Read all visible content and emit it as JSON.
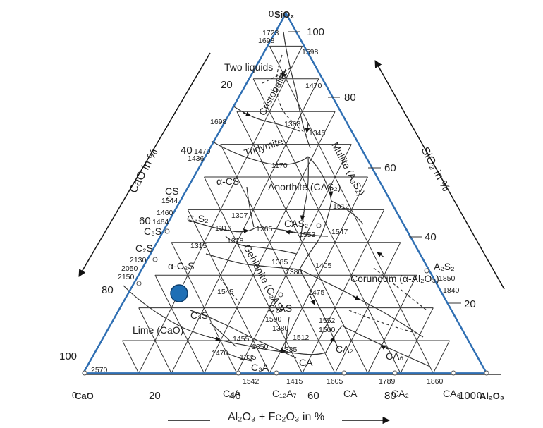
{
  "vertices": {
    "top": "SiO₂",
    "left": "CaO",
    "right": "Al₂O₃",
    "top_zero": "0",
    "left_zero": "0",
    "right_zero": "0"
  },
  "axis_titles": {
    "left": "CaO in %",
    "right": "SiO₂ in %",
    "bottom": "Al₂O₃ + Fe₂O₃ in %"
  },
  "ticks": {
    "right_side": [
      "100",
      "80",
      "60",
      "40",
      "20"
    ],
    "left_side": [
      "20",
      "40",
      "60",
      "80",
      "100"
    ],
    "bottom": [
      "20",
      "40",
      "60",
      "80",
      "100"
    ]
  },
  "regions": [
    "Two liquids",
    "Cristobalite",
    "Tridymite",
    "Mullite (A₃S₂)",
    "α-CS",
    "Anorthite (CAS₂)",
    "CAS₂",
    "Gehlenite (C₂AS)",
    "α-C₂S",
    "C₃S",
    "Lime (CaO)",
    "Corundum (α-Al₂O₃)"
  ],
  "compounds": {
    "CS": "CS",
    "C3S2": "C₃S₂",
    "C3S": "C₃S",
    "C2S": "C₂S",
    "C2AS": "C₂AS",
    "CA2": "CA₂",
    "CA6": "CA₆",
    "CA": "CA",
    "C3A": "C₃A",
    "A2S2": "A₂S₂",
    "bottom_C3A": "C₃A",
    "bottom_C12A7": "C₁₂A₇",
    "bottom_CA": "CA",
    "bottom_CA2": "CA₂",
    "bottom_CA6": "CA₆"
  },
  "temperatures": [
    "1723",
    "1698",
    "1598",
    "1470",
    "1368",
    "1345",
    "1698",
    "1470",
    "1436",
    "1170",
    "1544",
    "1460",
    "1464",
    "1307",
    "1310",
    "1265",
    "1315",
    "1318",
    "1553",
    "1547",
    "1512",
    "2130",
    "2050",
    "2150",
    "1385",
    "1380",
    "1405",
    "1545",
    "1475",
    "1590",
    "1380",
    "1552",
    "1500",
    "1512",
    "1455",
    "1350",
    "1335",
    "1470",
    "1335",
    "1542",
    "1415",
    "1605",
    "1789",
    "1860",
    "2570",
    "1850",
    "1840"
  ],
  "colors": {
    "frame": "#2f6fb3",
    "marker": "#1f6fb5",
    "lines": "#333333"
  }
}
